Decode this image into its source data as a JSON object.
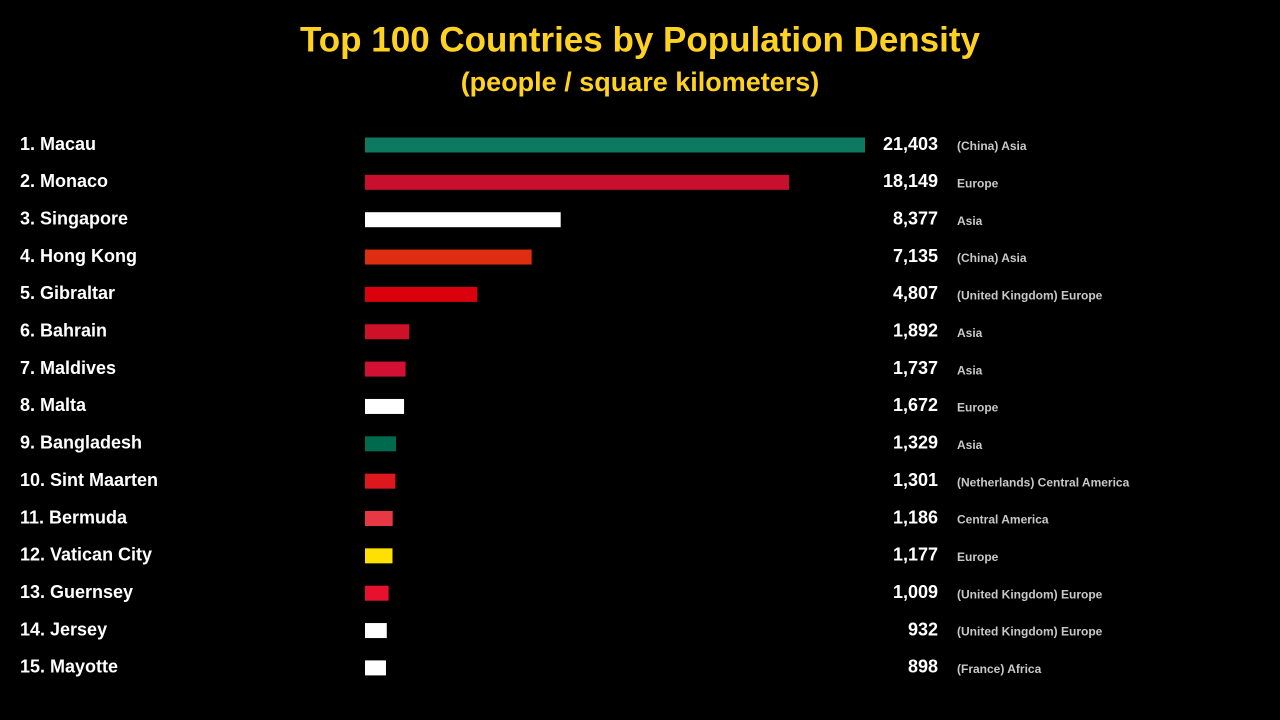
{
  "chart_data": {
    "type": "bar",
    "orientation": "horizontal",
    "title": "Top 100 Countries by Population Density",
    "subtitle": "(people / square kilometers)",
    "categories": [
      "1. Macau",
      "2. Monaco",
      "3. Singapore",
      "4. Hong Kong",
      "5. Gibraltar",
      "6. Bahrain",
      "7. Maldives",
      "8. Malta",
      "9. Bangladesh",
      "10. Sint Maarten",
      "11. Bermuda",
      "12. Vatican City",
      "13. Guernsey",
      "14. Jersey",
      "15. Mayotte"
    ],
    "values": [
      21403,
      18149,
      8377,
      7135,
      4807,
      1892,
      1737,
      1672,
      1329,
      1301,
      1186,
      1177,
      1009,
      932,
      898
    ],
    "value_labels": [
      "21,403",
      "18,149",
      "8,377",
      "7,135",
      "4,807",
      "1,892",
      "1,737",
      "1,672",
      "1,329",
      "1,301",
      "1,186",
      "1,177",
      "1,009",
      "932",
      "898"
    ],
    "regions": [
      "(China) Asia",
      "Europe",
      "Asia",
      "(China) Asia",
      "(United Kingdom) Europe",
      "Asia",
      "Asia",
      "Europe",
      "Asia",
      "(Netherlands) Central America",
      "Central America",
      "Europe",
      "(United Kingdom) Europe",
      "(United Kingdom) Europe",
      "(France) Africa"
    ],
    "colors": [
      "#0d7a5f",
      "#c8102e",
      "#ffffff",
      "#de2d10",
      "#da000c",
      "#ce1126",
      "#d21034",
      "#ffffff",
      "#006a4e",
      "#dc171d",
      "#e83845",
      "#ffe000",
      "#e8112d",
      "#ffffff",
      "#ffffff"
    ]
  }
}
